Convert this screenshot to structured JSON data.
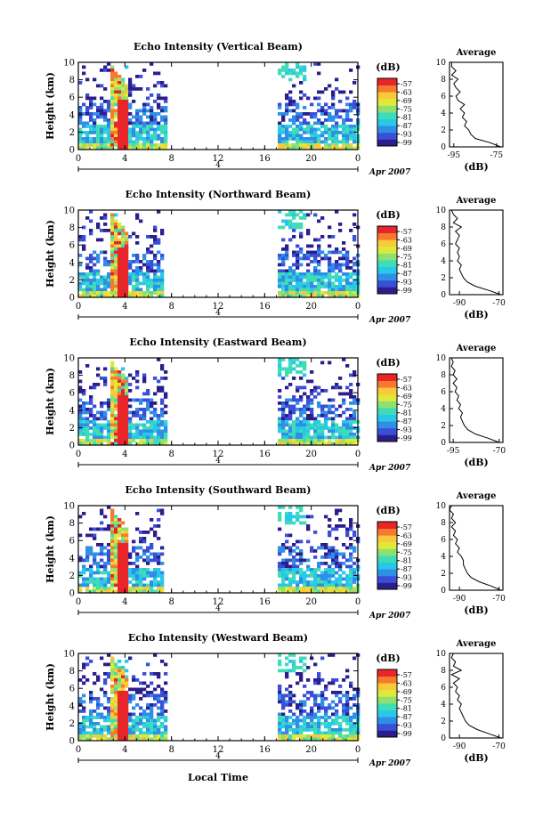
{
  "figure": {
    "xlabel_bottom": "Local Time",
    "colorbar_unit": "(dB)",
    "colorbar_ticks": [
      "-57",
      "-63",
      "-69",
      "-75",
      "-81",
      "-87",
      "-93",
      "-99"
    ],
    "colorbar_colors": [
      "#2b1e8c",
      "#3a4fd8",
      "#2f8fe6",
      "#29c7e8",
      "#3fdcb8",
      "#8ee070",
      "#dfe93a",
      "#f9c93a",
      "#f7792e",
      "#e8262a"
    ],
    "date_label": "Apr 2007",
    "day_label": "4",
    "avg_title": "Average",
    "avg_xlabel": "(dB)",
    "ylabel": "Height (km)"
  },
  "chart_data": [
    {
      "type": "heatmap",
      "title": "Echo Intensity (Vertical Beam)",
      "ylabel": "Height (km)",
      "x_ticks": [
        "0",
        "4",
        "8",
        "12",
        "16",
        "20",
        "0"
      ],
      "y_ticks": [
        "0",
        "2",
        "4",
        "6",
        "8",
        "10"
      ],
      "xlim": [
        0,
        24
      ],
      "ylim": [
        0,
        10
      ],
      "clim": [
        -99,
        -57
      ],
      "data_gap_hours": [
        7.5,
        16.9
      ],
      "rain_event_hours": [
        2.6,
        4.2
      ],
      "average_profile": {
        "x_ticks": [
          "-95",
          "-75"
        ],
        "xlim": [
          -97,
          -72
        ],
        "heights": [
          0,
          0.5,
          1,
          1.5,
          2,
          2.5,
          3,
          3.5,
          4,
          4.5,
          5,
          5.5,
          6,
          6.5,
          7,
          7.5,
          8,
          8.5,
          9,
          9.5,
          10
        ],
        "values": [
          -73,
          -78,
          -85,
          -87,
          -88,
          -90,
          -89,
          -91,
          -90,
          -92,
          -90,
          -93,
          -94,
          -92,
          -94,
          -95,
          -93,
          -96,
          -94,
          -96,
          -96
        ]
      }
    },
    {
      "type": "heatmap",
      "title": "Echo Intensity (Northward Beam)",
      "ylabel": "Height (km)",
      "x_ticks": [
        "0",
        "4",
        "8",
        "12",
        "16",
        "20",
        "0"
      ],
      "y_ticks": [
        "0",
        "2",
        "4",
        "6",
        "8",
        "10"
      ],
      "xlim": [
        0,
        24
      ],
      "ylim": [
        0,
        10
      ],
      "clim": [
        -99,
        -57
      ],
      "data_gap_hours": [
        7.3,
        16.9
      ],
      "rain_event_hours": [
        2.6,
        4.2
      ],
      "average_profile": {
        "x_ticks": [
          "-90",
          "-70"
        ],
        "xlim": [
          -95,
          -68
        ],
        "heights": [
          0,
          0.5,
          1,
          1.5,
          2,
          2.5,
          3,
          3.5,
          4,
          4.5,
          5,
          5.5,
          6,
          6.5,
          7,
          7.5,
          8,
          8.5,
          9,
          9.5,
          10
        ],
        "values": [
          -69,
          -75,
          -82,
          -86,
          -88,
          -89,
          -90,
          -89,
          -91,
          -90,
          -91,
          -90,
          -92,
          -91,
          -90,
          -92,
          -89,
          -93,
          -91,
          -93,
          -94
        ]
      }
    },
    {
      "type": "heatmap",
      "title": "Echo Intensity (Eastward Beam)",
      "ylabel": "Height (km)",
      "x_ticks": [
        "0",
        "4",
        "8",
        "12",
        "16",
        "20",
        "0"
      ],
      "y_ticks": [
        "0",
        "2",
        "4",
        "6",
        "8",
        "10"
      ],
      "xlim": [
        0,
        24
      ],
      "ylim": [
        0,
        10
      ],
      "clim": [
        -99,
        -57
      ],
      "data_gap_hours": [
        7.5,
        16.9
      ],
      "rain_event_hours": [
        2.6,
        4.2
      ],
      "average_profile": {
        "x_ticks": [
          "-95",
          "-70"
        ],
        "xlim": [
          -97,
          -68
        ],
        "heights": [
          0,
          0.5,
          1,
          1.5,
          2,
          2.5,
          3,
          3.5,
          4,
          4.5,
          5,
          5.5,
          6,
          6.5,
          7,
          7.5,
          8,
          8.5,
          9,
          9.5,
          10
        ],
        "values": [
          -70,
          -76,
          -83,
          -87,
          -89,
          -90,
          -91,
          -90,
          -92,
          -91,
          -93,
          -92,
          -94,
          -93,
          -95,
          -93,
          -95,
          -94,
          -96,
          -95,
          -96
        ]
      }
    },
    {
      "type": "heatmap",
      "title": "Echo Intensity (Southward Beam)",
      "ylabel": "Height (km)",
      "x_ticks": [
        "0",
        "4",
        "8",
        "12",
        "16",
        "20",
        "0"
      ],
      "y_ticks": [
        "0",
        "2",
        "4",
        "6",
        "8",
        "10"
      ],
      "xlim": [
        0,
        24
      ],
      "ylim": [
        0,
        10
      ],
      "clim": [
        -99,
        -57
      ],
      "data_gap_hours": [
        7.3,
        16.9
      ],
      "rain_event_hours": [
        2.6,
        4.2
      ],
      "average_profile": {
        "x_ticks": [
          "-90",
          "-70"
        ],
        "xlim": [
          -95,
          -68
        ],
        "heights": [
          0,
          0.5,
          1,
          1.5,
          2,
          2.5,
          3,
          3.5,
          4,
          4.5,
          5,
          5.5,
          6,
          6.5,
          7,
          7.5,
          8,
          8.5,
          9,
          9.5,
          10
        ],
        "values": [
          -69,
          -74,
          -80,
          -84,
          -86,
          -87,
          -88,
          -88,
          -89,
          -91,
          -90,
          -92,
          -91,
          -93,
          -92,
          -94,
          -92,
          -94,
          -93,
          -95,
          -94
        ]
      }
    },
    {
      "type": "heatmap",
      "title": "Echo Intensity (Westward Beam)",
      "ylabel": "Height (km)",
      "x_ticks": [
        "0",
        "4",
        "8",
        "12",
        "16",
        "20",
        "0"
      ],
      "y_ticks": [
        "0",
        "2",
        "4",
        "6",
        "8",
        "10"
      ],
      "xlim": [
        0,
        24
      ],
      "ylim": [
        0,
        10
      ],
      "clim": [
        -99,
        -57
      ],
      "data_gap_hours": [
        7.5,
        16.9
      ],
      "rain_event_hours": [
        2.6,
        4.2
      ],
      "average_profile": {
        "x_ticks": [
          "-90",
          "-70"
        ],
        "xlim": [
          -95,
          -68
        ],
        "heights": [
          0,
          0.5,
          1,
          1.5,
          2,
          2.5,
          3,
          3.5,
          4,
          4.5,
          5,
          5.5,
          6,
          6.5,
          7,
          7.5,
          8,
          8.5,
          9,
          9.5,
          10
        ],
        "values": [
          -69,
          -75,
          -81,
          -85,
          -87,
          -88,
          -89,
          -90,
          -89,
          -91,
          -90,
          -92,
          -91,
          -93,
          -90,
          -94,
          -89,
          -93,
          -92,
          -94,
          -93
        ]
      }
    }
  ]
}
